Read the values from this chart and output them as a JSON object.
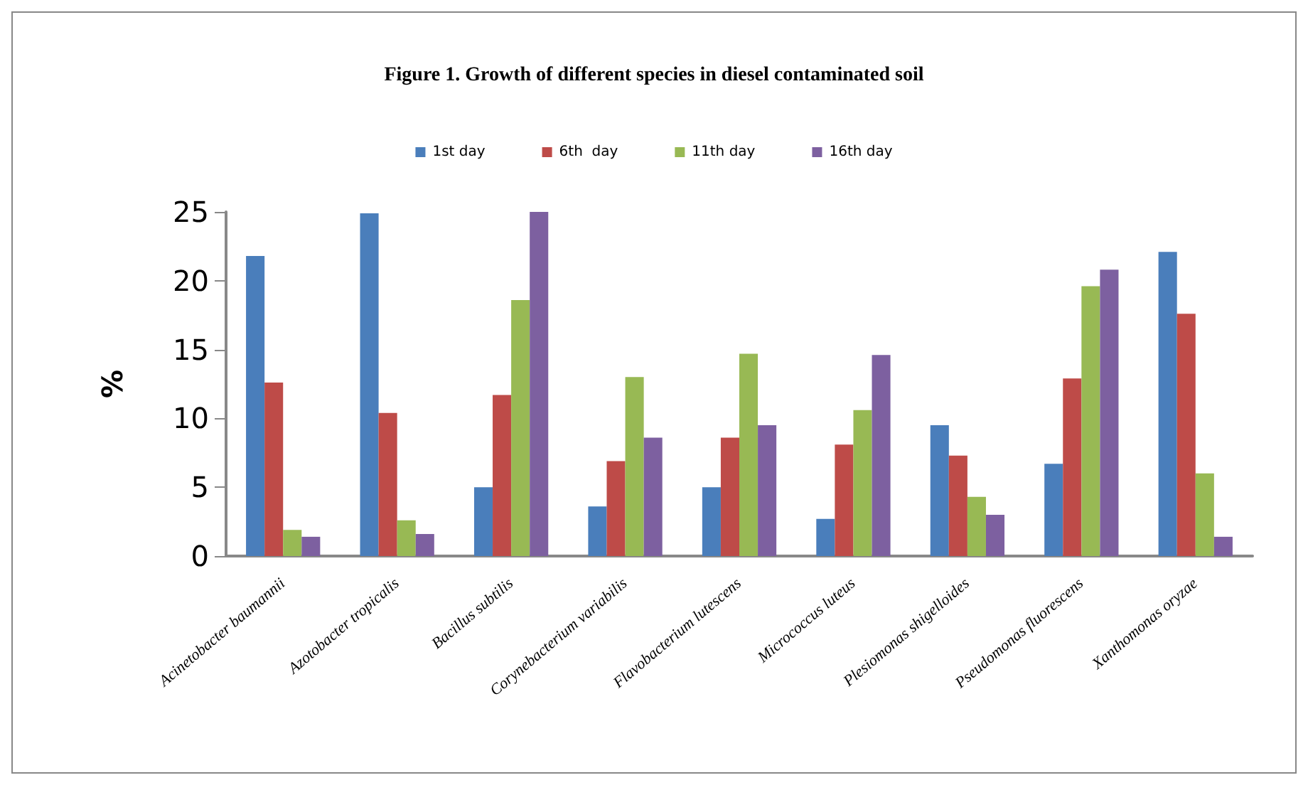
{
  "chart_data": {
    "type": "bar",
    "title": "Figure 1. Growth of different species in diesel contaminated soil",
    "ylabel": "%",
    "categories": [
      "Acinetobacter baumannii",
      "Azotobacter tropicalis",
      "Bacillus subtilis",
      "Corynebacterium variabilis",
      "Flavobacterium lutescens",
      "Micrococcus luteus",
      "Plesiomonas shigelloides",
      "Pseudomonas fluorescens",
      "Xanthomonas oryzae"
    ],
    "series": [
      {
        "name": "1st day",
        "color": "#4a7ebb",
        "values": [
          21.8,
          24.9,
          5.0,
          3.6,
          5.0,
          2.7,
          9.5,
          6.7,
          22.1
        ]
      },
      {
        "name": "6th  day",
        "color": "#be4b48",
        "values": [
          12.6,
          10.4,
          11.7,
          6.9,
          8.6,
          8.1,
          7.3,
          12.9,
          17.6
        ]
      },
      {
        "name": "11th day",
        "color": "#98b954",
        "values": [
          1.9,
          2.6,
          18.6,
          13.0,
          14.7,
          10.6,
          4.3,
          19.6,
          6.0
        ]
      },
      {
        "name": "16th day",
        "color": "#7d60a0",
        "values": [
          1.4,
          1.6,
          25.0,
          8.6,
          9.5,
          14.6,
          3.0,
          20.8,
          1.4
        ]
      }
    ],
    "ylim": [
      0,
      25
    ],
    "yticks": [
      0,
      5,
      10,
      15,
      20,
      25
    ],
    "grid": false,
    "legend": "top"
  }
}
